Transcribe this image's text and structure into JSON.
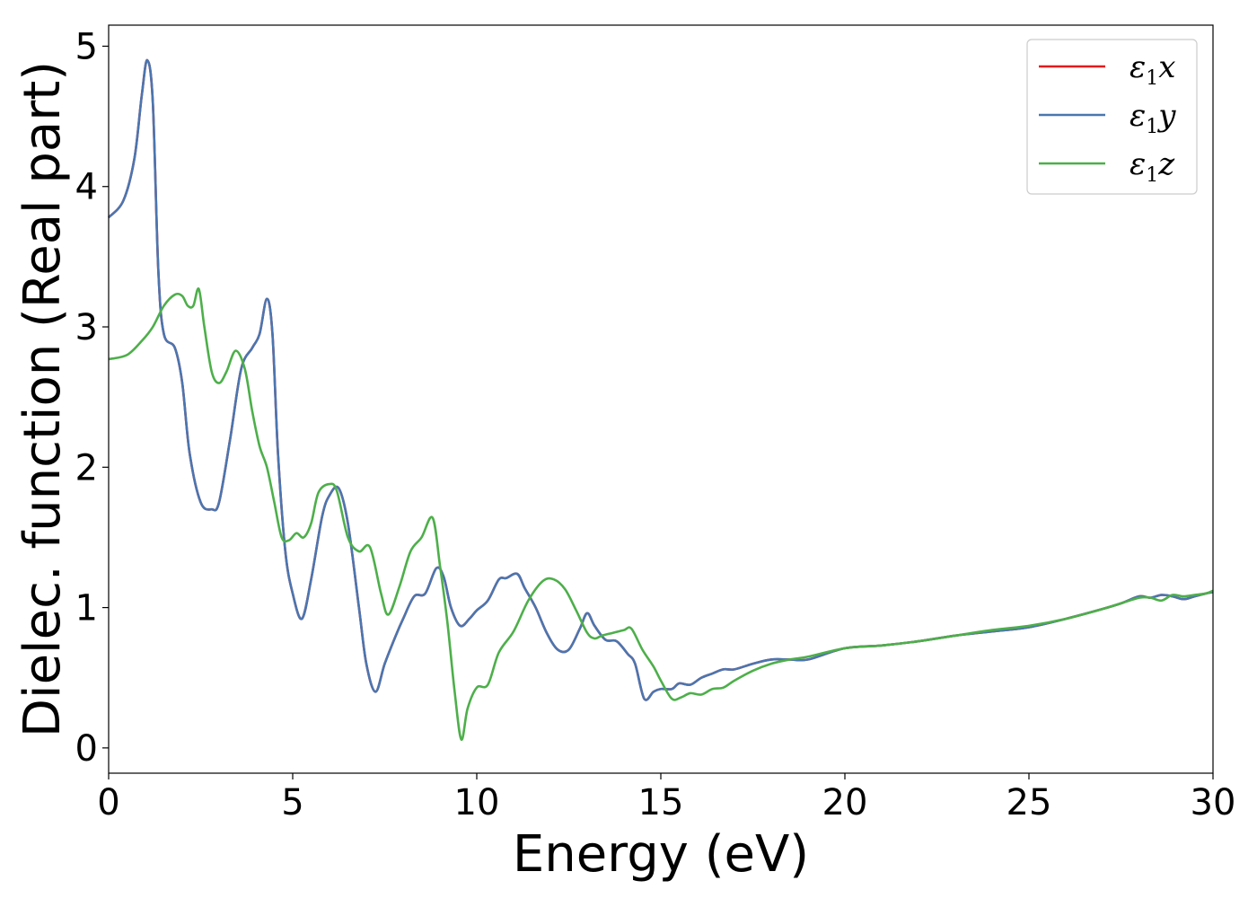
{
  "chart_data": {
    "type": "line",
    "xlabel": "Energy (eV)",
    "ylabel": "Dielec. function (Real part)",
    "xlim": [
      0,
      30
    ],
    "ylim": [
      -0.18,
      5.15
    ],
    "xticks": [
      0,
      5,
      10,
      15,
      20,
      25,
      30
    ],
    "yticks": [
      0,
      1,
      2,
      3,
      4,
      5
    ],
    "grid": false,
    "legend_position": "top-right",
    "series": [
      {
        "name": "ε1x",
        "color": "#e41a1c",
        "x": [
          0,
          0.4,
          0.7,
          0.9,
          1.05,
          1.2,
          1.35,
          1.5,
          1.8,
          2.0,
          2.2,
          2.5,
          2.8,
          3.0,
          3.3,
          3.6,
          3.9,
          4.1,
          4.3,
          4.45,
          4.6,
          4.8,
          5.0,
          5.25,
          5.5,
          5.8,
          6.0,
          6.25,
          6.5,
          6.8,
          7.0,
          7.25,
          7.5,
          7.8,
          8.0,
          8.3,
          8.6,
          8.9,
          9.1,
          9.3,
          9.55,
          9.8,
          10.0,
          10.3,
          10.6,
          10.8,
          11.1,
          11.3,
          11.6,
          11.9,
          12.2,
          12.5,
          12.8,
          13.0,
          13.2,
          13.5,
          13.8,
          14.1,
          14.3,
          14.55,
          14.8,
          15.0,
          15.3,
          15.5,
          15.8,
          16.1,
          16.4,
          16.7,
          17.0,
          17.5,
          18.0,
          18.5,
          19.0,
          20.0,
          21.0,
          22.0,
          23.0,
          24.0,
          25.0,
          26.0,
          27.0,
          27.5,
          28.0,
          28.3,
          28.6,
          28.9,
          29.2,
          29.5,
          29.8,
          30.0
        ],
        "y": [
          3.78,
          3.9,
          4.2,
          4.65,
          4.9,
          4.6,
          3.4,
          2.95,
          2.85,
          2.6,
          2.1,
          1.75,
          1.7,
          1.75,
          2.2,
          2.7,
          2.85,
          2.95,
          3.2,
          2.95,
          2.1,
          1.4,
          1.1,
          0.92,
          1.2,
          1.65,
          1.8,
          1.85,
          1.6,
          1.0,
          0.6,
          0.4,
          0.6,
          0.8,
          0.92,
          1.08,
          1.1,
          1.28,
          1.22,
          1.0,
          0.87,
          0.92,
          0.98,
          1.05,
          1.2,
          1.21,
          1.24,
          1.14,
          1.0,
          0.82,
          0.7,
          0.7,
          0.85,
          0.96,
          0.87,
          0.77,
          0.76,
          0.67,
          0.6,
          0.35,
          0.4,
          0.42,
          0.42,
          0.46,
          0.45,
          0.5,
          0.53,
          0.56,
          0.56,
          0.6,
          0.63,
          0.63,
          0.63,
          0.71,
          0.73,
          0.76,
          0.8,
          0.83,
          0.86,
          0.92,
          0.99,
          1.03,
          1.08,
          1.07,
          1.09,
          1.08,
          1.06,
          1.08,
          1.1,
          1.11
        ]
      },
      {
        "name": "ε1y",
        "color": "#4a76b0",
        "x": [
          0,
          0.4,
          0.7,
          0.9,
          1.05,
          1.2,
          1.35,
          1.5,
          1.8,
          2.0,
          2.2,
          2.5,
          2.8,
          3.0,
          3.3,
          3.6,
          3.9,
          4.1,
          4.3,
          4.45,
          4.6,
          4.8,
          5.0,
          5.25,
          5.5,
          5.8,
          6.0,
          6.25,
          6.5,
          6.8,
          7.0,
          7.25,
          7.5,
          7.8,
          8.0,
          8.3,
          8.6,
          8.9,
          9.1,
          9.3,
          9.55,
          9.8,
          10.0,
          10.3,
          10.6,
          10.8,
          11.1,
          11.3,
          11.6,
          11.9,
          12.2,
          12.5,
          12.8,
          13.0,
          13.2,
          13.5,
          13.8,
          14.1,
          14.3,
          14.55,
          14.8,
          15.0,
          15.3,
          15.5,
          15.8,
          16.1,
          16.4,
          16.7,
          17.0,
          17.5,
          18.0,
          18.5,
          19.0,
          20.0,
          21.0,
          22.0,
          23.0,
          24.0,
          25.0,
          26.0,
          27.0,
          27.5,
          28.0,
          28.3,
          28.6,
          28.9,
          29.2,
          29.5,
          29.8,
          30.0
        ],
        "y": [
          3.78,
          3.9,
          4.2,
          4.65,
          4.9,
          4.6,
          3.4,
          2.95,
          2.85,
          2.6,
          2.1,
          1.75,
          1.7,
          1.75,
          2.2,
          2.7,
          2.85,
          2.95,
          3.2,
          2.95,
          2.1,
          1.4,
          1.1,
          0.92,
          1.2,
          1.65,
          1.8,
          1.85,
          1.6,
          1.0,
          0.6,
          0.4,
          0.6,
          0.8,
          0.92,
          1.08,
          1.1,
          1.28,
          1.22,
          1.0,
          0.87,
          0.92,
          0.98,
          1.05,
          1.2,
          1.21,
          1.24,
          1.14,
          1.0,
          0.82,
          0.7,
          0.7,
          0.85,
          0.96,
          0.87,
          0.77,
          0.76,
          0.67,
          0.6,
          0.35,
          0.4,
          0.42,
          0.42,
          0.46,
          0.45,
          0.5,
          0.53,
          0.56,
          0.56,
          0.6,
          0.63,
          0.63,
          0.63,
          0.71,
          0.73,
          0.76,
          0.8,
          0.83,
          0.86,
          0.92,
          0.99,
          1.03,
          1.08,
          1.07,
          1.09,
          1.08,
          1.06,
          1.08,
          1.1,
          1.11
        ]
      },
      {
        "name": "ε1z",
        "color": "#4daf4a",
        "x": [
          0,
          0.5,
          0.9,
          1.2,
          1.5,
          1.8,
          2.0,
          2.15,
          2.3,
          2.45,
          2.6,
          2.8,
          3.0,
          3.2,
          3.45,
          3.7,
          3.9,
          4.1,
          4.3,
          4.5,
          4.7,
          4.9,
          5.1,
          5.3,
          5.5,
          5.7,
          6.0,
          6.2,
          6.5,
          6.8,
          7.1,
          7.4,
          7.6,
          7.9,
          8.2,
          8.5,
          8.8,
          9.0,
          9.2,
          9.4,
          9.58,
          9.75,
          10.0,
          10.3,
          10.6,
          11.0,
          11.4,
          11.8,
          12.1,
          12.4,
          12.7,
          13.0,
          13.2,
          13.4,
          13.7,
          14.0,
          14.2,
          14.5,
          14.8,
          15.0,
          15.3,
          15.55,
          15.8,
          16.1,
          16.4,
          16.7,
          17.0,
          17.5,
          18.0,
          18.5,
          19.0,
          20.0,
          21.0,
          22.0,
          23.0,
          24.0,
          25.0,
          26.0,
          27.0,
          27.5,
          28.0,
          28.3,
          28.6,
          28.9,
          29.2,
          29.5,
          29.8,
          30.0
        ],
        "y": [
          2.77,
          2.8,
          2.9,
          3.0,
          3.15,
          3.23,
          3.22,
          3.15,
          3.15,
          3.27,
          3.0,
          2.68,
          2.6,
          2.68,
          2.83,
          2.7,
          2.4,
          2.15,
          2.0,
          1.75,
          1.5,
          1.48,
          1.53,
          1.5,
          1.6,
          1.82,
          1.88,
          1.83,
          1.5,
          1.4,
          1.43,
          1.1,
          0.95,
          1.15,
          1.4,
          1.5,
          1.64,
          1.3,
          0.9,
          0.4,
          0.06,
          0.28,
          0.43,
          0.45,
          0.68,
          0.83,
          1.05,
          1.19,
          1.2,
          1.13,
          0.98,
          0.82,
          0.78,
          0.8,
          0.82,
          0.84,
          0.85,
          0.7,
          0.58,
          0.48,
          0.35,
          0.36,
          0.39,
          0.38,
          0.42,
          0.43,
          0.48,
          0.55,
          0.6,
          0.63,
          0.65,
          0.71,
          0.73,
          0.76,
          0.8,
          0.84,
          0.87,
          0.92,
          0.99,
          1.03,
          1.07,
          1.07,
          1.05,
          1.09,
          1.08,
          1.09,
          1.1,
          1.12
        ]
      }
    ]
  },
  "legend": {
    "items": [
      {
        "base": "ε",
        "sub": "1",
        "var": "x"
      },
      {
        "base": "ε",
        "sub": "1",
        "var": "y"
      },
      {
        "base": "ε",
        "sub": "1",
        "var": "z"
      }
    ]
  }
}
